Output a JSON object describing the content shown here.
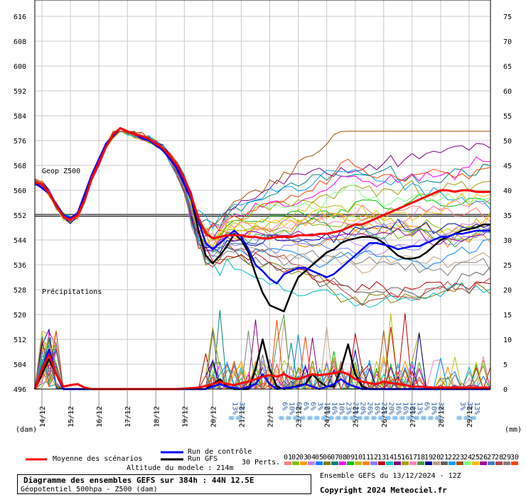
{
  "chart_data": {
    "type": "line",
    "left_axis": {
      "ticks": [
        616,
        608,
        600,
        592,
        584,
        576,
        568,
        560,
        552,
        544,
        536,
        528,
        520,
        512,
        504,
        496
      ],
      "unit": "(dam)",
      "range": [
        496,
        616
      ]
    },
    "right_axis": {
      "ticks": [
        75,
        70,
        65,
        60,
        55,
        50,
        45,
        40,
        35,
        30,
        25,
        20,
        15,
        10,
        5,
        0
      ],
      "unit": "(mm)",
      "range": [
        0,
        75
      ]
    },
    "x_ticks": [
      "14/12",
      "15/12",
      "16/12",
      "17/12",
      "18/12",
      "19/12",
      "20/12",
      "21/12",
      "22/12",
      "23/12",
      "24/12",
      "25/12",
      "26/12",
      "27/12",
      "28/12",
      "29/12"
    ],
    "x_range_hours": [
      0,
      384
    ],
    "reference_line_dam": 552,
    "labels": {
      "geop": "Geop Z500",
      "precip": "Précipitations"
    },
    "snow_markers": [
      {
        "h": 165,
        "values": [
          "13%",
          "3%"
        ]
      },
      {
        "h": 207,
        "values": [
          "6%",
          "10%",
          "6%",
          "6%",
          "6%",
          "3%",
          "10%",
          "16%",
          "10%",
          "23%",
          "23%",
          "20%",
          "26%",
          "16%",
          "23%",
          "20%",
          "16%",
          "16%",
          "10%",
          "13%",
          "6%",
          "10%",
          "3%"
        ]
      },
      {
        "h": 357,
        "values": [
          "3%",
          "3%",
          "13%"
        ]
      }
    ],
    "series": [
      {
        "name": "Moyenne des scénarios",
        "color": "#ff0000",
        "z500": [
          [
            0,
            562.5
          ],
          [
            6,
            562
          ],
          [
            12,
            559
          ],
          [
            18,
            555
          ],
          [
            24,
            551.5
          ],
          [
            30,
            550.5
          ],
          [
            36,
            552
          ],
          [
            42,
            557
          ],
          [
            48,
            564
          ],
          [
            54,
            569
          ],
          [
            60,
            574
          ],
          [
            66,
            578
          ],
          [
            72,
            580
          ],
          [
            78,
            579
          ],
          [
            84,
            578
          ],
          [
            90,
            577.5
          ],
          [
            96,
            576.5
          ],
          [
            102,
            575
          ],
          [
            108,
            573.5
          ],
          [
            114,
            571
          ],
          [
            120,
            568
          ],
          [
            126,
            564
          ],
          [
            132,
            558
          ],
          [
            138,
            551
          ],
          [
            144,
            546
          ],
          [
            150,
            544.5
          ],
          [
            156,
            545
          ],
          [
            162,
            545.5
          ],
          [
            168,
            545.5
          ],
          [
            174,
            545.5
          ],
          [
            180,
            545
          ],
          [
            186,
            545
          ],
          [
            192,
            544.5
          ],
          [
            198,
            544.5
          ],
          [
            204,
            545
          ],
          [
            210,
            545
          ],
          [
            216,
            545
          ],
          [
            222,
            545.5
          ],
          [
            228,
            545.5
          ],
          [
            234,
            545.5
          ],
          [
            240,
            546
          ],
          [
            246,
            546
          ],
          [
            252,
            546.5
          ],
          [
            258,
            547
          ],
          [
            264,
            548
          ],
          [
            270,
            549
          ],
          [
            276,
            549
          ],
          [
            282,
            550
          ],
          [
            288,
            551
          ],
          [
            294,
            552
          ],
          [
            300,
            553
          ],
          [
            306,
            554
          ],
          [
            312,
            555
          ],
          [
            318,
            556
          ],
          [
            324,
            557
          ],
          [
            330,
            558
          ],
          [
            336,
            559
          ],
          [
            342,
            560
          ],
          [
            348,
            560
          ],
          [
            354,
            559.5
          ],
          [
            360,
            560
          ],
          [
            366,
            560
          ],
          [
            372,
            559.5
          ],
          [
            378,
            559.5
          ],
          [
            384,
            559.5
          ]
        ],
        "precip": [
          [
            0,
            0
          ],
          [
            6,
            4
          ],
          [
            12,
            7
          ],
          [
            18,
            3
          ],
          [
            24,
            0.5
          ],
          [
            30,
            0.8
          ],
          [
            36,
            1
          ],
          [
            42,
            0.3
          ],
          [
            48,
            0
          ],
          [
            72,
            0
          ],
          [
            96,
            0
          ],
          [
            120,
            0
          ],
          [
            138,
            0.3
          ],
          [
            150,
            1
          ],
          [
            156,
            1.5
          ],
          [
            162,
            1
          ],
          [
            168,
            0.8
          ],
          [
            174,
            1.2
          ],
          [
            180,
            1.5
          ],
          [
            186,
            2
          ],
          [
            192,
            2.5
          ],
          [
            198,
            2.8
          ],
          [
            204,
            2.5
          ],
          [
            210,
            3
          ],
          [
            216,
            2.2
          ],
          [
            222,
            2
          ],
          [
            228,
            2.5
          ],
          [
            234,
            3
          ],
          [
            240,
            2.8
          ],
          [
            246,
            3
          ],
          [
            252,
            3.2
          ],
          [
            258,
            3.5
          ],
          [
            264,
            3
          ],
          [
            270,
            2
          ],
          [
            276,
            1.5
          ],
          [
            282,
            1.2
          ],
          [
            288,
            1
          ],
          [
            294,
            1.5
          ],
          [
            300,
            1.2
          ],
          [
            306,
            1
          ],
          [
            312,
            0.8
          ],
          [
            318,
            0.5
          ],
          [
            324,
            0.5
          ],
          [
            336,
            0.3
          ],
          [
            348,
            0.3
          ],
          [
            360,
            0.3
          ],
          [
            372,
            0.3
          ],
          [
            384,
            0.3
          ]
        ]
      },
      {
        "name": "Run de contrôle",
        "color": "#0000ff",
        "z500": [
          [
            0,
            562.5
          ],
          [
            12,
            559
          ],
          [
            24,
            552
          ],
          [
            30,
            551
          ],
          [
            36,
            552.5
          ],
          [
            48,
            565
          ],
          [
            60,
            575
          ],
          [
            72,
            580
          ],
          [
            84,
            578
          ],
          [
            96,
            576
          ],
          [
            108,
            573
          ],
          [
            120,
            567
          ],
          [
            132,
            557
          ],
          [
            144,
            543
          ],
          [
            150,
            541
          ],
          [
            156,
            543
          ],
          [
            168,
            547
          ],
          [
            174,
            545
          ],
          [
            180,
            541
          ],
          [
            186,
            536
          ],
          [
            192,
            534
          ],
          [
            198,
            531.5
          ],
          [
            204,
            530
          ],
          [
            210,
            533
          ],
          [
            216,
            534
          ],
          [
            222,
            535
          ],
          [
            228,
            535
          ],
          [
            234,
            534
          ],
          [
            240,
            533
          ],
          [
            246,
            532
          ],
          [
            252,
            533
          ],
          [
            258,
            535
          ],
          [
            264,
            537
          ],
          [
            270,
            539
          ],
          [
            276,
            541
          ],
          [
            282,
            543
          ],
          [
            288,
            543
          ],
          [
            294,
            542.5
          ],
          [
            300,
            542
          ],
          [
            306,
            541
          ],
          [
            312,
            541.5
          ],
          [
            318,
            542
          ],
          [
            324,
            542
          ],
          [
            330,
            543
          ],
          [
            336,
            544
          ],
          [
            342,
            545
          ],
          [
            348,
            545
          ],
          [
            354,
            546
          ],
          [
            360,
            546
          ],
          [
            366,
            546.5
          ],
          [
            372,
            547
          ],
          [
            378,
            547
          ],
          [
            384,
            547
          ]
        ],
        "precip": [
          [
            0,
            0
          ],
          [
            12,
            8
          ],
          [
            18,
            3
          ],
          [
            24,
            0
          ],
          [
            48,
            0
          ],
          [
            144,
            0
          ],
          [
            150,
            0.5
          ],
          [
            156,
            1
          ],
          [
            162,
            0.5
          ],
          [
            174,
            0
          ],
          [
            186,
            1
          ],
          [
            192,
            3
          ],
          [
            198,
            1
          ],
          [
            204,
            0
          ],
          [
            222,
            0.5
          ],
          [
            228,
            1
          ],
          [
            234,
            0.5
          ],
          [
            240,
            0
          ],
          [
            252,
            1
          ],
          [
            258,
            2
          ],
          [
            264,
            1
          ],
          [
            276,
            0
          ],
          [
            384,
            0
          ]
        ]
      },
      {
        "name": "Run GFS",
        "color": "#000000",
        "z500": [
          [
            0,
            562.5
          ],
          [
            12,
            559
          ],
          [
            24,
            552
          ],
          [
            30,
            551
          ],
          [
            36,
            552.5
          ],
          [
            48,
            565
          ],
          [
            60,
            575
          ],
          [
            72,
            580
          ],
          [
            84,
            578
          ],
          [
            96,
            576
          ],
          [
            108,
            573
          ],
          [
            120,
            567
          ],
          [
            132,
            557
          ],
          [
            138,
            547
          ],
          [
            144,
            539
          ],
          [
            150,
            536.5
          ],
          [
            156,
            539
          ],
          [
            162,
            542
          ],
          [
            168,
            546
          ],
          [
            174,
            544
          ],
          [
            180,
            540
          ],
          [
            186,
            533
          ],
          [
            192,
            527
          ],
          [
            198,
            523
          ],
          [
            204,
            522
          ],
          [
            210,
            521
          ],
          [
            216,
            527
          ],
          [
            222,
            532
          ],
          [
            228,
            534
          ],
          [
            234,
            536
          ],
          [
            240,
            538
          ],
          [
            246,
            540
          ],
          [
            252,
            541
          ],
          [
            258,
            543
          ],
          [
            264,
            544
          ],
          [
            270,
            544.5
          ],
          [
            276,
            545
          ],
          [
            282,
            545
          ],
          [
            288,
            544.5
          ],
          [
            294,
            543
          ],
          [
            300,
            541
          ],
          [
            306,
            539
          ],
          [
            312,
            538
          ],
          [
            318,
            538
          ],
          [
            324,
            538.5
          ],
          [
            330,
            540
          ],
          [
            336,
            542
          ],
          [
            342,
            544
          ],
          [
            348,
            545
          ],
          [
            354,
            546
          ],
          [
            360,
            547
          ],
          [
            366,
            547.5
          ],
          [
            372,
            548
          ],
          [
            378,
            549
          ],
          [
            384,
            549
          ]
        ],
        "precip": [
          [
            0,
            0
          ],
          [
            12,
            6
          ],
          [
            18,
            3
          ],
          [
            24,
            0
          ],
          [
            48,
            0
          ],
          [
            144,
            0
          ],
          [
            150,
            1
          ],
          [
            156,
            2
          ],
          [
            162,
            0.5
          ],
          [
            168,
            0
          ],
          [
            180,
            0
          ],
          [
            186,
            4
          ],
          [
            192,
            10
          ],
          [
            198,
            4
          ],
          [
            204,
            0.5
          ],
          [
            210,
            0
          ],
          [
            228,
            1
          ],
          [
            234,
            3
          ],
          [
            240,
            1.5
          ],
          [
            246,
            0.5
          ],
          [
            252,
            0.5
          ],
          [
            258,
            4
          ],
          [
            264,
            9
          ],
          [
            270,
            3
          ],
          [
            276,
            0.5
          ],
          [
            282,
            0
          ],
          [
            384,
            0
          ]
        ]
      }
    ]
  },
  "legend": {
    "moyenne": "Moyenne des scénarios",
    "controle": "Run de contrôle",
    "gfs": "Run GFS",
    "perts": "30 Perts.",
    "altitude": "Altitude du modele : 214m",
    "pert_numbers": [
      "01",
      "02",
      "03",
      "04",
      "05",
      "06",
      "07",
      "08",
      "09",
      "10",
      "11",
      "12",
      "13",
      "14",
      "15",
      "16",
      "17",
      "18",
      "19",
      "20",
      "21",
      "22",
      "23",
      "24",
      "25",
      "26",
      "27",
      "28",
      "29",
      "30"
    ],
    "pert_colors": [
      "#ff8080",
      "#80c000",
      "#ffa000",
      "#c080ff",
      "#0080ff",
      "#808000",
      "#008080",
      "#ff00ff",
      "#00c000",
      "#c0c000",
      "#ff8000",
      "#8080ff",
      "#c00000",
      "#00c0c0",
      "#800080",
      "#a0a000",
      "#ff80c0",
      "#40a040",
      "#0000a0",
      "#c0a080",
      "#606060",
      "#00a0ff",
      "#a05000",
      "#80ff80",
      "#ffc000",
      "#a000a0",
      "#4080c0",
      "#c04040",
      "#808080",
      "#ff4000"
    ]
  },
  "info": {
    "title": "Diagramme des ensembles GEFS sur 384h : 44N 12.5E",
    "subtitle": "Géopotentiel 500hpa - Z500 (dam)",
    "ensemble": "Ensemble GEFS du 13/12/2024 - 12Z",
    "copyright": "Copyright 2024 Meteociel.fr"
  }
}
